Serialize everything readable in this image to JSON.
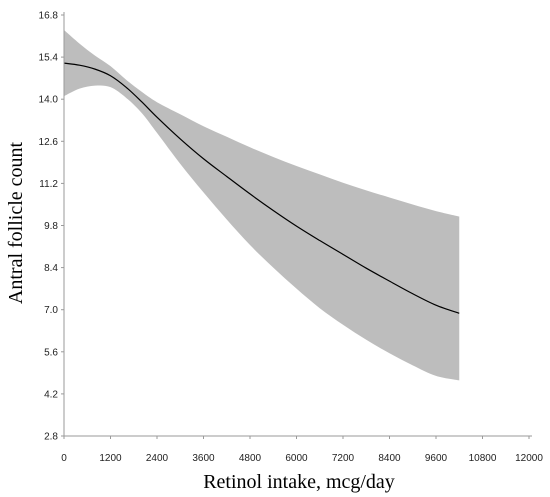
{
  "chart_data": {
    "type": "line",
    "title": "",
    "xlabel": "Retinol intake, mcg/day",
    "ylabel": "Antral follicle count",
    "xlim": [
      0,
      12000
    ],
    "ylim": [
      2.8,
      16.8
    ],
    "xticks": [
      0,
      1200,
      2400,
      3600,
      4800,
      6000,
      7200,
      8400,
      9600,
      10800,
      12000
    ],
    "yticks": [
      2.8,
      4.2,
      5.6,
      7.0,
      8.4,
      9.8,
      11.2,
      12.6,
      14.0,
      15.4,
      16.8
    ],
    "xtick_labels": [
      "0",
      "1200",
      "2400",
      "3600",
      "4800",
      "6000",
      "7200",
      "8400",
      "9600",
      "10800",
      "12000"
    ],
    "ytick_labels": [
      "2.8",
      "4.2",
      "5.6",
      "7.0",
      "8.4",
      "9.8",
      "11.2",
      "12.6",
      "14.0",
      "15.4",
      "16.8"
    ],
    "grid": false,
    "series": [
      {
        "estimate": {
          "x": [
            0,
            400,
            800,
            1200,
            1600,
            2000,
            2400,
            3000,
            3600,
            4200,
            4800,
            5400,
            6000,
            6600,
            7200,
            7800,
            8400,
            9000,
            9600,
            10200
          ],
          "y": [
            15.2,
            15.13,
            15.0,
            14.78,
            14.4,
            13.92,
            13.4,
            12.68,
            12.02,
            11.43,
            10.85,
            10.3,
            9.78,
            9.3,
            8.84,
            8.38,
            7.95,
            7.53,
            7.15,
            6.88
          ]
        },
        "ci_upper": {
          "x": [
            0,
            400,
            800,
            1200,
            1600,
            2000,
            2400,
            3000,
            3600,
            4200,
            4800,
            5400,
            6000,
            6600,
            7200,
            7800,
            8400,
            9000,
            9600,
            10200
          ],
          "y": [
            16.3,
            15.85,
            15.45,
            15.1,
            14.65,
            14.25,
            13.9,
            13.5,
            13.1,
            12.75,
            12.4,
            12.08,
            11.78,
            11.5,
            11.22,
            10.97,
            10.73,
            10.5,
            10.28,
            10.1
          ]
        },
        "ci_lower": {
          "x": [
            0,
            400,
            800,
            1200,
            1600,
            2000,
            2400,
            3000,
            3600,
            4200,
            4800,
            5400,
            6000,
            6600,
            7200,
            7800,
            8400,
            9000,
            9600,
            10200
          ],
          "y": [
            14.1,
            14.35,
            14.45,
            14.4,
            14.05,
            13.55,
            12.88,
            11.85,
            10.9,
            10.0,
            9.15,
            8.4,
            7.7,
            7.05,
            6.5,
            6.0,
            5.55,
            5.15,
            4.8,
            4.65
          ]
        }
      }
    ],
    "colors": {
      "ci_band": "#bdbdbd",
      "line": "#000000",
      "axis": "#9a9a9a"
    }
  }
}
